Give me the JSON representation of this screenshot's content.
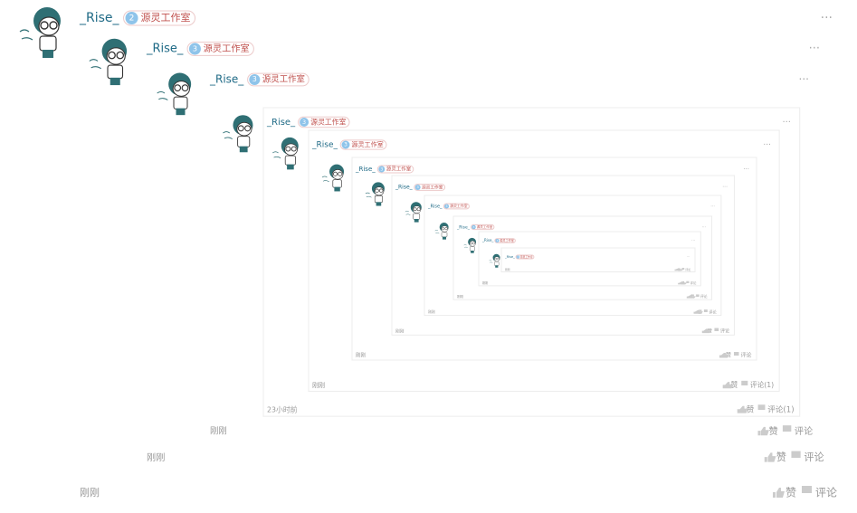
{
  "comments": [
    {
      "user": "_Rise_",
      "badge": 2,
      "group": "源灵工作室",
      "time": "刚刚",
      "like": "赞",
      "comment": "评论"
    },
    {
      "user": "_Rise_",
      "badge": 3,
      "group": "源灵工作室",
      "time": "刚刚",
      "like": "赞",
      "comment": "评论"
    },
    {
      "user": "_Rise_",
      "badge": 3,
      "group": "源灵工作室",
      "time": "刚刚",
      "like": "赞",
      "comment": "评论"
    },
    {
      "user": "_Rise_",
      "badge": 3,
      "group": "源灵工作室",
      "time": "23小时前",
      "like": "赞",
      "comment": "评论(1)"
    },
    {
      "user": "_Rise_",
      "badge": 3,
      "group": "源灵工作室",
      "time": "刚刚",
      "like": "赞",
      "comment": "评论(1)"
    },
    {
      "user": "_Rise_",
      "badge": 3,
      "group": "源灵工作室",
      "time": "刚刚",
      "like": "赞",
      "comment": "评论"
    },
    {
      "user": "_Rise_",
      "badge": 3,
      "group": "源灵工作室",
      "time": "刚刚",
      "like": "赞",
      "comment": "评论"
    },
    {
      "user": "_Rise_",
      "badge": 3,
      "group": "源灵工作室",
      "time": "刚刚",
      "like": "赞",
      "comment": "评论"
    },
    {
      "user": "_Rise_",
      "badge": 3,
      "group": "源灵工作室",
      "time": "刚刚",
      "like": "赞",
      "comment": "评论"
    },
    {
      "user": "_Rise_",
      "badge": 3,
      "group": "源灵工作室",
      "time": "刚刚",
      "like": "赞",
      "comment": "评论"
    },
    {
      "user": "_Rise_",
      "badge": 3,
      "group": "源灵工作室",
      "time": "刚刚",
      "like": "赞",
      "comment": "评论"
    }
  ]
}
